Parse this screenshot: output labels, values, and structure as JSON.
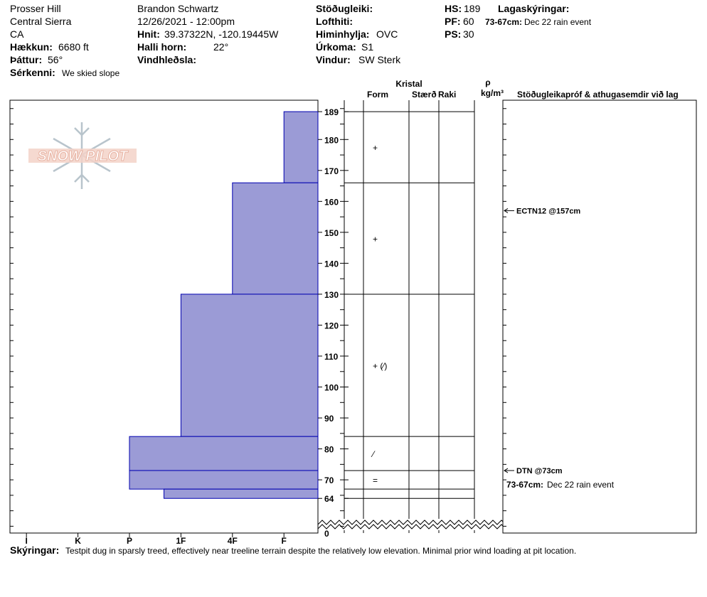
{
  "header": {
    "location": [
      "Prosser Hill",
      "Central Sierra",
      "CA"
    ],
    "elevation": {
      "label": "Hækkun:",
      "value": "6680 ft"
    },
    "aspect": {
      "label": "Þáttur:",
      "value": "56°"
    },
    "features": {
      "label": "Sérkenni:",
      "value": "We skied slope"
    },
    "observer": "Brandon Schwartz",
    "datetime": "12/26/2021 - 12:00pm",
    "coords": {
      "label": "Hnit:",
      "value": "39.37322N, -120.19445W"
    },
    "slope": {
      "label": "Halli horn:",
      "value": "22°"
    },
    "wind_loading": {
      "label": "Vindhleðsla:"
    },
    "stability": {
      "label": "Stöðugleiki:"
    },
    "air_temp": {
      "label": "Lofthiti:"
    },
    "sky": {
      "label": "Himinhylja:",
      "value": "OVC"
    },
    "precip": {
      "label": "Úrkoma:",
      "value": "S1"
    },
    "wind": {
      "label": "Vindur:",
      "value": "SW Sterk"
    },
    "hs": {
      "label": "HS:",
      "value": 189
    },
    "pf": {
      "label": "PF:",
      "value": 60
    },
    "ps": {
      "label": "PS:",
      "value": 30
    },
    "layer_notes": {
      "label": "Lagaskýringar:",
      "range": "73-67cm:",
      "text": "Dec 22 rain event"
    }
  },
  "logo": "SNOW PILOT",
  "chart_data": {
    "type": "snow-profile",
    "xlim": [
      6.32,
      0.34
    ],
    "xticks": [
      {
        "value": 6,
        "label": "I"
      },
      {
        "value": 5,
        "label": "K"
      },
      {
        "value": 4,
        "label": "P"
      },
      {
        "value": 3,
        "label": "1F"
      },
      {
        "value": 2,
        "label": "4F"
      },
      {
        "value": 1,
        "label": "F"
      }
    ],
    "ylim": [
      52.8,
      192.7
    ],
    "yticks": [
      64,
      70,
      80,
      90,
      100,
      110,
      120,
      130,
      140,
      150,
      160,
      170,
      180,
      189
    ],
    "y_break": 0,
    "color": "#9b9bd6",
    "edge_color": "#0000b0",
    "layers": {
      "top": [
        189,
        166,
        130,
        84,
        73,
        67
      ],
      "bottom": [
        166,
        130,
        84,
        73,
        67,
        64
      ],
      "hardness": [
        1,
        2,
        3,
        4,
        4,
        3.33
      ],
      "form": [
        "+",
        "+",
        "+ (⁄)",
        "⁄",
        "=",
        null
      ]
    },
    "crystal_header": "Kristal",
    "columns": [
      "Form",
      "Stærð",
      "Raki"
    ],
    "density_symbol": "ρ",
    "density_unit": "kg/m³",
    "comments_header": "Stöðugleikapróf & athugasemdir við lag",
    "tests": [
      {
        "label": "ECTN12 @157cm",
        "depth": 157
      },
      {
        "label": "DTN @73cm",
        "depth": 73
      }
    ]
  },
  "footer": {
    "label": "Skýringar:",
    "text": "Testpit dug in sparsly treed, effectively near treeline terrain despite the relatively low elevation. Minimal prior wind loading at pit location."
  }
}
